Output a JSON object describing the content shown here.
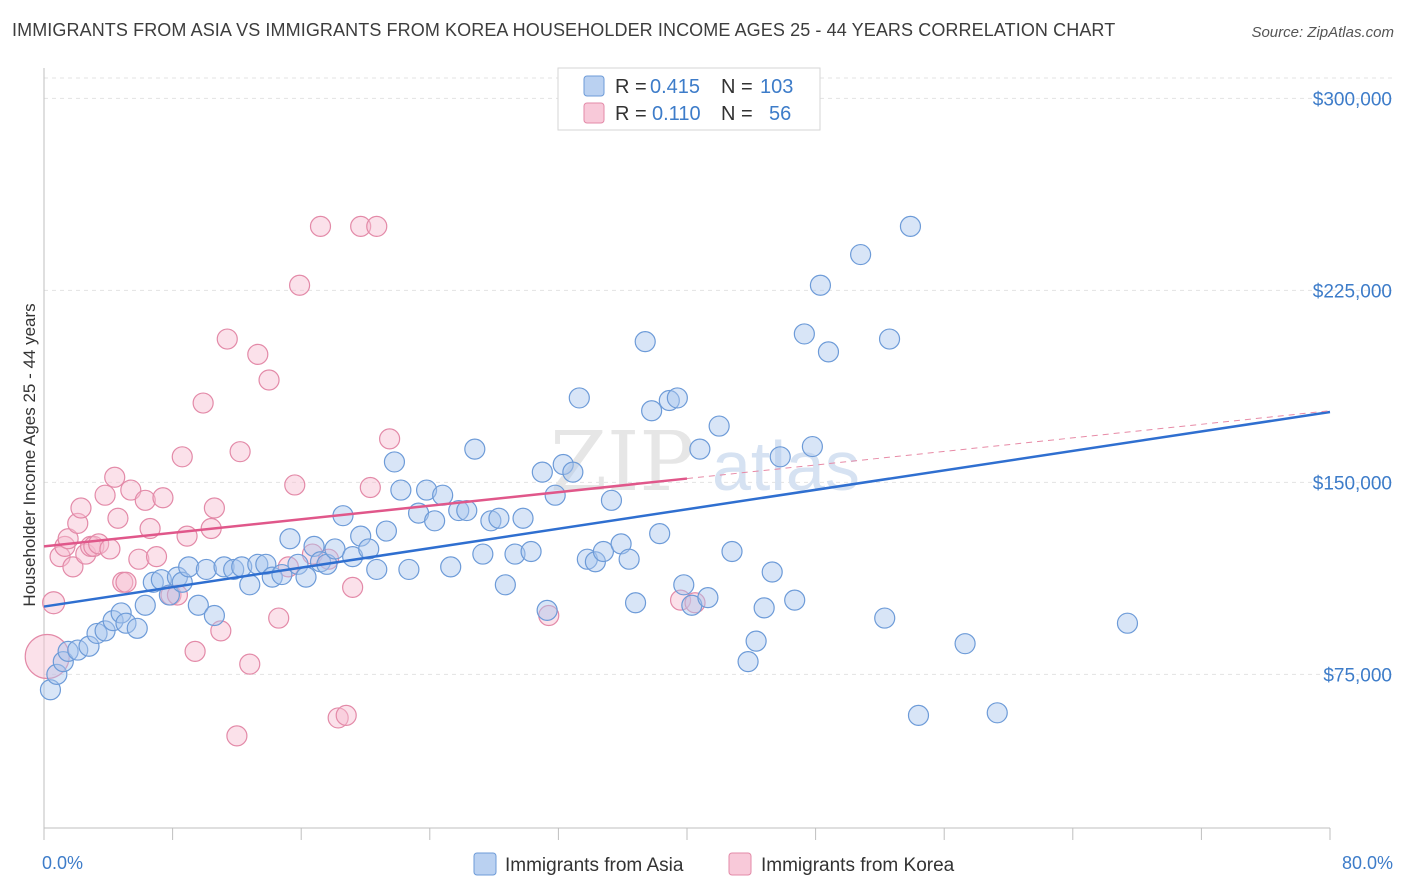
{
  "header": {
    "title": "IMMIGRANTS FROM ASIA VS IMMIGRANTS FROM KOREA HOUSEHOLDER INCOME AGES 25 - 44 YEARS CORRELATION CHART",
    "source": "Source: ZipAtlas.com"
  },
  "watermark": {
    "zip": "ZIP",
    "atlas": "atlas"
  },
  "legend": {
    "r_label": "R =",
    "n_label": "N =",
    "rows": [
      {
        "name": "Immigrants from Asia",
        "r": "0.415",
        "n": "103",
        "color": "#a9c6ee"
      },
      {
        "name": "Immigrants from Korea",
        "r": "0.110",
        "n": "56",
        "color": "#f6bcd0"
      }
    ]
  },
  "chart_data": {
    "type": "scatter",
    "ylabel": "Householder Income Ages 25 - 44 years",
    "xlabel": "",
    "xlim": [
      0,
      80
    ],
    "ylim": [
      15000,
      315000
    ],
    "x_tick_labels": [
      "0.0%",
      "80.0%"
    ],
    "y_ticks": [
      {
        "value": 75000,
        "label": "$75,000"
      },
      {
        "value": 150000,
        "label": "$150,000"
      },
      {
        "value": 225000,
        "label": "$225,000"
      },
      {
        "value": 300000,
        "label": "$300,000"
      }
    ],
    "grid": "horizontal dashed",
    "series": [
      {
        "name": "Immigrants from Asia",
        "color": "#a9c6ee",
        "stroke": "#6d9bd8",
        "trend": {
          "x": [
            0,
            80
          ],
          "y": [
            101500,
            177500
          ],
          "color": "#2f6fd0"
        },
        "points": [
          [
            0.4,
            69000
          ],
          [
            0.8,
            75000
          ],
          [
            1.2,
            80000
          ],
          [
            1.5,
            84000
          ],
          [
            2.1,
            84500
          ],
          [
            2.8,
            86000
          ],
          [
            3.3,
            91000
          ],
          [
            3.8,
            92000
          ],
          [
            4.3,
            96000
          ],
          [
            4.8,
            99000
          ],
          [
            5.1,
            95000
          ],
          [
            5.8,
            93000
          ],
          [
            6.3,
            102000
          ],
          [
            6.8,
            111000
          ],
          [
            7.3,
            112000
          ],
          [
            7.8,
            106000
          ],
          [
            8.3,
            113000
          ],
          [
            8.6,
            111000
          ],
          [
            9.0,
            117000
          ],
          [
            9.6,
            102000
          ],
          [
            10.1,
            116000
          ],
          [
            10.6,
            98000
          ],
          [
            11.2,
            117000
          ],
          [
            11.8,
            116000
          ],
          [
            12.3,
            117000
          ],
          [
            12.8,
            110000
          ],
          [
            13.3,
            118000
          ],
          [
            13.8,
            118000
          ],
          [
            14.2,
            113000
          ],
          [
            14.8,
            114000
          ],
          [
            15.3,
            128000
          ],
          [
            15.8,
            118000
          ],
          [
            16.3,
            113000
          ],
          [
            16.8,
            125000
          ],
          [
            17.2,
            119000
          ],
          [
            17.6,
            118000
          ],
          [
            18.1,
            124000
          ],
          [
            18.6,
            137000
          ],
          [
            19.2,
            121000
          ],
          [
            19.7,
            129000
          ],
          [
            20.2,
            124000
          ],
          [
            20.7,
            116000
          ],
          [
            21.3,
            131000
          ],
          [
            21.8,
            158000
          ],
          [
            22.2,
            147000
          ],
          [
            22.7,
            116000
          ],
          [
            23.3,
            138000
          ],
          [
            23.8,
            147000
          ],
          [
            24.3,
            135000
          ],
          [
            24.8,
            145000
          ],
          [
            25.3,
            117000
          ],
          [
            25.8,
            139000
          ],
          [
            26.3,
            139000
          ],
          [
            26.8,
            163000
          ],
          [
            27.3,
            122000
          ],
          [
            27.8,
            135000
          ],
          [
            28.3,
            136000
          ],
          [
            28.7,
            110000
          ],
          [
            29.3,
            122000
          ],
          [
            29.8,
            136000
          ],
          [
            30.3,
            123000
          ],
          [
            31.0,
            154000
          ],
          [
            31.3,
            100000
          ],
          [
            31.8,
            145000
          ],
          [
            32.3,
            157000
          ],
          [
            32.9,
            154000
          ],
          [
            33.3,
            183000
          ],
          [
            33.8,
            120000
          ],
          [
            34.3,
            119000
          ],
          [
            34.8,
            123000
          ],
          [
            35.3,
            143000
          ],
          [
            35.9,
            126000
          ],
          [
            36.4,
            120000
          ],
          [
            36.8,
            103000
          ],
          [
            37.4,
            205000
          ],
          [
            37.8,
            178000
          ],
          [
            38.3,
            130000
          ],
          [
            38.9,
            182000
          ],
          [
            39.4,
            183000
          ],
          [
            39.8,
            110000
          ],
          [
            40.3,
            102000
          ],
          [
            40.8,
            163000
          ],
          [
            41.3,
            105000
          ],
          [
            42.0,
            172000
          ],
          [
            42.8,
            123000
          ],
          [
            43.8,
            80000
          ],
          [
            44.3,
            88000
          ],
          [
            44.8,
            101000
          ],
          [
            45.3,
            115000
          ],
          [
            45.8,
            160000
          ],
          [
            46.7,
            104000
          ],
          [
            47.3,
            208000
          ],
          [
            47.8,
            164000
          ],
          [
            48.3,
            227000
          ],
          [
            48.8,
            201000
          ],
          [
            50.8,
            239000
          ],
          [
            52.3,
            97000
          ],
          [
            52.6,
            206000
          ],
          [
            53.9,
            250000
          ],
          [
            54.4,
            59000
          ],
          [
            57.3,
            87000
          ],
          [
            59.3,
            60000
          ],
          [
            67.4,
            95000
          ]
        ]
      },
      {
        "name": "Immigrants from Korea",
        "color": "#f6bcd0",
        "stroke": "#e38aa8",
        "trend": {
          "x": [
            0,
            40
          ],
          "y": [
            125000,
            151500
          ],
          "color": "#e0578a"
        },
        "trend_extended": {
          "x": [
            40,
            80
          ],
          "y": [
            151500,
            178000
          ],
          "color": "#e78aa6"
        },
        "points": [
          [
            0.2,
            82000
          ],
          [
            0.6,
            103000
          ],
          [
            1.0,
            121000
          ],
          [
            1.3,
            125000
          ],
          [
            1.5,
            128000
          ],
          [
            1.8,
            117000
          ],
          [
            2.1,
            134000
          ],
          [
            2.3,
            140000
          ],
          [
            2.6,
            122000
          ],
          [
            2.9,
            125000
          ],
          [
            3.1,
            125000
          ],
          [
            3.4,
            126000
          ],
          [
            3.8,
            145000
          ],
          [
            4.1,
            124000
          ],
          [
            4.4,
            152000
          ],
          [
            4.6,
            136000
          ],
          [
            4.9,
            111000
          ],
          [
            5.1,
            111000
          ],
          [
            5.4,
            147000
          ],
          [
            5.9,
            120000
          ],
          [
            6.3,
            143000
          ],
          [
            6.6,
            132000
          ],
          [
            7.0,
            121000
          ],
          [
            7.4,
            144000
          ],
          [
            7.9,
            106000
          ],
          [
            8.3,
            106000
          ],
          [
            8.6,
            160000
          ],
          [
            8.9,
            129000
          ],
          [
            9.4,
            84000
          ],
          [
            9.9,
            181000
          ],
          [
            10.4,
            132000
          ],
          [
            10.6,
            140000
          ],
          [
            11.0,
            92000
          ],
          [
            11.4,
            206000
          ],
          [
            12.0,
            51000
          ],
          [
            12.2,
            162000
          ],
          [
            12.8,
            79000
          ],
          [
            13.3,
            200000
          ],
          [
            14.0,
            190000
          ],
          [
            14.6,
            97000
          ],
          [
            15.2,
            117000
          ],
          [
            15.6,
            149000
          ],
          [
            15.9,
            227000
          ],
          [
            16.7,
            122000
          ],
          [
            17.2,
            250000
          ],
          [
            17.7,
            120000
          ],
          [
            18.3,
            58000
          ],
          [
            18.8,
            59000
          ],
          [
            19.2,
            109000
          ],
          [
            19.7,
            250000
          ],
          [
            20.3,
            148000
          ],
          [
            20.7,
            250000
          ],
          [
            21.5,
            167000
          ],
          [
            31.4,
            98000
          ],
          [
            39.6,
            104000
          ],
          [
            40.5,
            103000
          ]
        ]
      }
    ]
  }
}
